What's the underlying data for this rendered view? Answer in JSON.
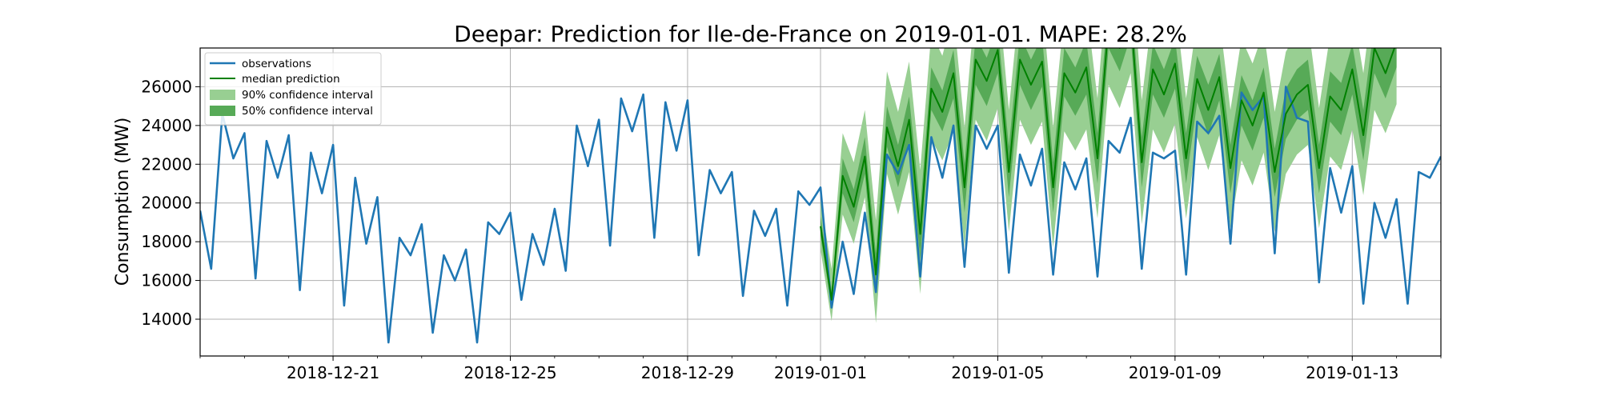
{
  "chart_data": {
    "type": "line",
    "title": "Deepar: Prediction for Ile-de-France on 2019-01-01. MAPE: 28.2%",
    "xlabel": "",
    "ylabel": "Consumption (MW)",
    "xlim": [
      "2018-12-18",
      "2019-01-15"
    ],
    "ylim": [
      12100,
      28000
    ],
    "grid": true,
    "legend_placement": "top-left",
    "x_ticks": [
      {
        "date": "2018-12-21",
        "label": "2018-12-21"
      },
      {
        "date": "2018-12-25",
        "label": "2018-12-25"
      },
      {
        "date": "2018-12-29",
        "label": "2018-12-29"
      },
      {
        "date": "2019-01-01",
        "label": "2019-01-01"
      },
      {
        "date": "2019-01-05",
        "label": "2019-01-05"
      },
      {
        "date": "2019-01-09",
        "label": "2019-01-09"
      },
      {
        "date": "2019-01-13",
        "label": "2019-01-13"
      }
    ],
    "y_ticks": [
      14000,
      16000,
      18000,
      20000,
      22000,
      24000,
      26000
    ],
    "legend": [
      {
        "label": "observations",
        "kind": "line",
        "color": "#1f77b4"
      },
      {
        "label": "median prediction",
        "kind": "line",
        "color": "#008000"
      },
      {
        "label": "90% confidence interval",
        "kind": "patch",
        "color": "#98cf92"
      },
      {
        "label": "50% confidence interval",
        "kind": "patch",
        "color": "#57aa57"
      }
    ],
    "colors": {
      "observations": "#1f77b4",
      "median": "#008000",
      "ci90": "#98cf92",
      "ci50": "#57aa57"
    },
    "observations": {
      "name": "observations",
      "x_start": "2018-12-18",
      "x_step_hours": 6,
      "values": [
        19600,
        16600,
        24600,
        22300,
        23600,
        16100,
        23200,
        21300,
        23500,
        15500,
        22600,
        20500,
        23000,
        14700,
        21300,
        17900,
        20300,
        12800,
        18200,
        17300,
        18900,
        13300,
        17300,
        16000,
        17600,
        12800,
        19000,
        18400,
        19500,
        15000,
        18400,
        16800,
        19700,
        16500,
        24000,
        21900,
        24300,
        17800,
        25400,
        23700,
        25600,
        18200,
        25200,
        22700,
        25300,
        17300,
        21700,
        20500,
        21600,
        15200,
        19600,
        18300,
        19700,
        14700,
        20600,
        19900,
        20800,
        14600,
        18000,
        15300,
        19500,
        15400,
        22500,
        21500,
        23000,
        16200,
        23400,
        21300,
        24000,
        16700,
        24000,
        22800,
        24000,
        16400,
        22500,
        20900,
        22800,
        16300,
        22100,
        20700,
        22300,
        16200,
        23200,
        22600,
        24400,
        16600,
        22600,
        22300,
        22700,
        16300,
        24200,
        23600,
        24500,
        17900,
        25700,
        24800,
        25500,
        17400,
        26000,
        24400,
        24200,
        15900,
        21800,
        19500,
        21900,
        14800,
        20000,
        18200,
        20200,
        14800,
        21600,
        21300,
        22400
      ]
    },
    "forecast": {
      "x_start": "2019-01-01",
      "x_step_hours": 6,
      "median": [
        18800,
        15000,
        21400,
        19800,
        22400,
        16300,
        23900,
        21900,
        24300,
        18400,
        25900,
        24700,
        26700,
        20800,
        27400,
        26300,
        27900,
        21600,
        27400,
        26100,
        27300,
        20800,
        26700,
        25700,
        27000,
        22300,
        29200,
        28000,
        29800,
        22100,
        26900,
        25600,
        27200,
        22300,
        26400,
        24800,
        26500,
        21800,
        25300,
        24000,
        25700,
        21600,
        24600,
        25600,
        26100,
        21800,
        25500,
        24800,
        26900,
        23500,
        28000,
        26700,
        28300
      ],
      "ci50_low": [
        18300,
        14600,
        20500,
        19000,
        21500,
        15300,
        22900,
        20800,
        23100,
        17100,
        24800,
        23700,
        25400,
        19500,
        26100,
        25000,
        26700,
        20300,
        26100,
        24800,
        26000,
        19500,
        25500,
        24500,
        25600,
        21000,
        28000,
        26800,
        28600,
        20800,
        25600,
        24400,
        25900,
        21000,
        25200,
        23500,
        25300,
        20500,
        24000,
        22700,
        24400,
        20300,
        23300,
        24300,
        24800,
        20500,
        24200,
        23500,
        25600,
        22200,
        26700,
        25400,
        27000
      ],
      "ci50_high": [
        19300,
        15500,
        22300,
        20700,
        23400,
        17400,
        25000,
        23000,
        25500,
        19700,
        27000,
        25800,
        27900,
        22000,
        28600,
        27500,
        29100,
        22900,
        28700,
        27400,
        28600,
        22100,
        28000,
        27000,
        28400,
        23600,
        30400,
        29200,
        31000,
        23400,
        28200,
        26900,
        28500,
        23600,
        27600,
        26100,
        27700,
        23000,
        26600,
        25300,
        27000,
        22800,
        25900,
        26900,
        27400,
        23000,
        26800,
        26200,
        28200,
        24800,
        29300,
        28000,
        29600
      ],
      "ci90_low": [
        17600,
        13900,
        19400,
        17900,
        20300,
        13800,
        21500,
        19400,
        21600,
        15300,
        23300,
        22200,
        23700,
        17700,
        24300,
        23200,
        24900,
        18500,
        24300,
        23000,
        24200,
        17700,
        23700,
        22700,
        23800,
        19200,
        26100,
        24900,
        26700,
        18900,
        23800,
        22600,
        24100,
        19200,
        23400,
        21700,
        23500,
        18700,
        22200,
        20900,
        22600,
        18500,
        21500,
        22500,
        23000,
        18700,
        22400,
        21700,
        23800,
        20400,
        24800,
        23600,
        25100
      ],
      "ci90_high": [
        20200,
        16600,
        23600,
        22100,
        24800,
        19100,
        26800,
        24700,
        27300,
        21700,
        28800,
        27600,
        29800,
        23900,
        30600,
        29500,
        31100,
        24800,
        30600,
        29300,
        30500,
        23900,
        29800,
        28800,
        30200,
        25400,
        32400,
        31200,
        33000,
        25300,
        30100,
        28800,
        30400,
        25400,
        29500,
        28000,
        29600,
        24800,
        28500,
        27200,
        28900,
        24700,
        27800,
        28800,
        29300,
        24900,
        28700,
        28100,
        30100,
        26700,
        31300,
        30000,
        31600
      ]
    }
  }
}
